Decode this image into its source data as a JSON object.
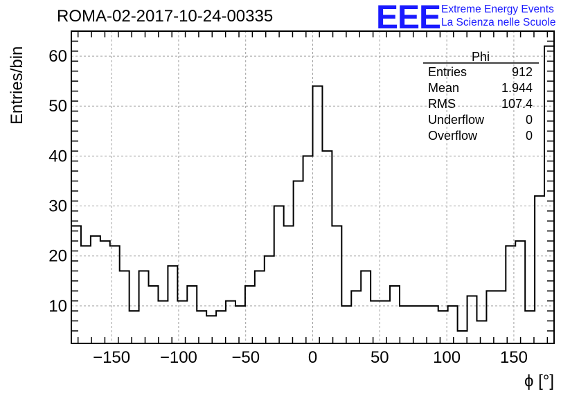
{
  "title": "ROMA-02-2017-10-24-00335",
  "logo": {
    "mark": "EEE",
    "line1": "Extreme Energy Events",
    "line2": "La Scienza nelle Scuole",
    "color": "#1a1aff"
  },
  "stats_box": {
    "name": "Phi",
    "rows": [
      {
        "label": "Entries",
        "value": "912"
      },
      {
        "label": "Mean",
        "value": "1.944"
      },
      {
        "label": "RMS",
        "value": "107.4"
      },
      {
        "label": "Underflow",
        "value": "0"
      },
      {
        "label": "Overflow",
        "value": "0"
      }
    ]
  },
  "chart_data": {
    "type": "histogram",
    "title": "ROMA-02-2017-10-24-00335",
    "xlabel": "ϕ [°]",
    "ylabel": "Entries/bin",
    "xlim": [
      -180,
      180
    ],
    "ylim": [
      2.5,
      65
    ],
    "bin_width": 7.2,
    "bin_low_edge": -180,
    "values": [
      26,
      22,
      24,
      23,
      22,
      17,
      9,
      17,
      14,
      11,
      18,
      11,
      14,
      9,
      8,
      9,
      11,
      10,
      14,
      17,
      20,
      30,
      26,
      35,
      40,
      54,
      41,
      26,
      10,
      13,
      17,
      11,
      11,
      14,
      10,
      10,
      10,
      10,
      9,
      10,
      5,
      12,
      7,
      13,
      13,
      22,
      23,
      9,
      32,
      62
    ],
    "x_ticks": [
      -150,
      -100,
      -50,
      0,
      50,
      100,
      150
    ],
    "x_tick_labels": [
      "−150",
      "−100",
      "−50",
      "0",
      "50",
      "100",
      "150"
    ],
    "y_ticks": [
      10,
      20,
      30,
      40,
      50,
      60
    ],
    "y_tick_labels": [
      "10",
      "20",
      "30",
      "40",
      "50",
      "60"
    ],
    "grid": true,
    "line_color": "#000000",
    "grid_color": "#a0a0a0"
  }
}
